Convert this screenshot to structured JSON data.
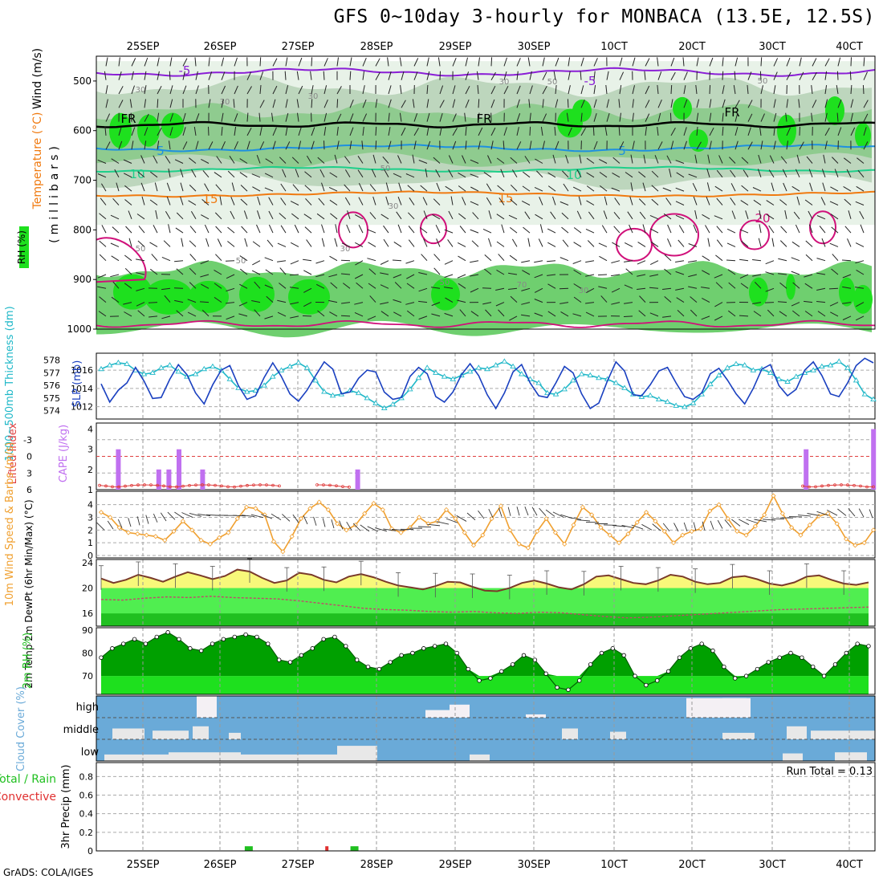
{
  "title": "GFS 0~10day 3-hourly for MONBACA (13.5E, 12.5S)",
  "credit": "GrADS: COLA/IGES",
  "date_labels": [
    "25SEP",
    "26SEP",
    "27SEP",
    "28SEP",
    "29SEP",
    "30SEP",
    "10CT",
    "20CT",
    "30CT",
    "40CT"
  ],
  "chart_data": [
    {
      "type": "heatmap",
      "ylabel": "(millibars)",
      "legend": [
        "RH (%)",
        "Temperature (°C)",
        "Wind (m/s)"
      ],
      "y_ticks": [
        500,
        600,
        700,
        800,
        900,
        1000
      ],
      "ylim": [
        1000,
        450
      ],
      "contour_labels": [
        "-5",
        "FR",
        "5",
        "10",
        "15",
        "20",
        "30",
        "50",
        "70"
      ],
      "colors": {
        "t_minus5": "#8a1fd6",
        "freezing": "#000000",
        "t5": "#1e90e0",
        "t10": "#1ecf8a",
        "t15": "#f07a10",
        "t20": "#d0107a",
        "rh70": "#6fcf6f",
        "rh90": "#1ee01e"
      }
    },
    {
      "type": "line",
      "ylabel_left": "1000~500mb Thickness (dm)",
      "ylabel_right": "SLP (mb)",
      "left_ticks": [
        574,
        575,
        576,
        577,
        578
      ],
      "right_ticks": [
        1012,
        1014,
        1016
      ],
      "series": [
        {
          "name": "Thickness",
          "color": "#20b8c8",
          "values": [
            577.3,
            577.6,
            577.8,
            577.7,
            577.2,
            576.9,
            577.0,
            577.4,
            577.6,
            577.1,
            576.7,
            576.9,
            577.3,
            577.5,
            577.2,
            576.5,
            575.8,
            575.5,
            575.6,
            576.0,
            576.7,
            577.2,
            577.5,
            577.8,
            577.4,
            576.4,
            575.5,
            575.2,
            575.3,
            575.6,
            575.4,
            575.0,
            574.6,
            574.2,
            574.5,
            575.0,
            575.7,
            576.6,
            577.4,
            577.0,
            576.7,
            576.5,
            576.8,
            577.1,
            577.4,
            577.3,
            577.6,
            577.9,
            577.5,
            576.9,
            576.5,
            576.2,
            575.4,
            575.3,
            575.7,
            576.4,
            576.9,
            576.8,
            576.6,
            576.5,
            576.2,
            575.8,
            575.3,
            575.1,
            575.2,
            574.9,
            574.7,
            574.4,
            574.3,
            574.6,
            575.3,
            576.1,
            576.8,
            577.4,
            577.7,
            577.6,
            577.2,
            577.3,
            577.0,
            576.5,
            576.3,
            576.7,
            577.0,
            577.2,
            577.5,
            577.6,
            577.9,
            577.4,
            576.4,
            575.3,
            574.9
          ]
        },
        {
          "name": "SLP",
          "color": "#1a40c0",
          "values": [
            1014.5,
            1012.5,
            1013.8,
            1014.6,
            1016.3,
            1014.8,
            1012.9,
            1013.0,
            1015.0,
            1016.6,
            1015.5,
            1013.5,
            1012.3,
            1014.4,
            1016.0,
            1016.5,
            1014.3,
            1012.8,
            1013.2,
            1015.2,
            1016.8,
            1015.3,
            1013.4,
            1012.6,
            1013.8,
            1015.4,
            1016.9,
            1016.1,
            1013.4,
            1013.6,
            1015.1,
            1016.0,
            1015.8,
            1013.6,
            1012.8,
            1013.0,
            1015.3,
            1016.3,
            1015.6,
            1013.1,
            1012.5,
            1013.6,
            1015.5,
            1016.7,
            1015.4,
            1013.3,
            1011.8,
            1013.5,
            1015.8,
            1016.6,
            1014.6,
            1013.2,
            1013.0,
            1014.6,
            1016.4,
            1015.7,
            1013.4,
            1011.8,
            1012.4,
            1014.8,
            1016.9,
            1015.9,
            1013.3,
            1013.2,
            1014.4,
            1015.9,
            1016.3,
            1014.6,
            1013.1,
            1012.8,
            1013.5,
            1015.6,
            1016.2,
            1014.9,
            1013.4,
            1012.3,
            1014.0,
            1016.1,
            1016.6,
            1014.3,
            1013.2,
            1013.9,
            1016.0,
            1016.9,
            1015.4,
            1013.4,
            1013.1,
            1014.6,
            1016.5,
            1017.3,
            1016.8
          ]
        }
      ]
    },
    {
      "type": "bar",
      "ylabel_left": "Lifted Index",
      "ylabel_right": "CAPE (J/kg)",
      "left_ticks": [
        -3,
        0,
        3,
        6
      ],
      "left_tick_labels": [
        "-3",
        "0",
        "3",
        "6"
      ],
      "right_ticks": [
        1,
        2,
        3,
        4
      ],
      "bar_color": "#c070f0",
      "line_color": "#e04040",
      "cape_bars": [
        {
          "i": 2,
          "v": 3
        },
        {
          "i": 14,
          "v": 2
        },
        {
          "i": 17,
          "v": 2
        },
        {
          "i": 20,
          "v": 3
        },
        {
          "i": 27,
          "v": 2
        },
        {
          "i": 73,
          "v": 2
        },
        {
          "i": 206,
          "v": 3
        },
        {
          "i": 226,
          "v": 4
        }
      ]
    },
    {
      "type": "line",
      "ylabel": "10m Wind Speed & Barbs (m/s)",
      "y_ticks": [
        0,
        1,
        2,
        3,
        4
      ],
      "color": "#f0a030",
      "values": [
        3.4,
        3.0,
        2.2,
        1.8,
        1.7,
        1.6,
        1.5,
        1.2,
        1.9,
        2.7,
        2.0,
        1.2,
        0.9,
        1.4,
        1.8,
        2.9,
        3.8,
        3.7,
        3.2,
        1.1,
        0.3,
        1.5,
        2.9,
        3.7,
        4.2,
        3.6,
        2.5,
        2.0,
        2.4,
        3.3,
        4.1,
        3.6,
        2.1,
        1.8,
        2.2,
        3.0,
        2.5,
        2.7,
        3.6,
        2.9,
        1.8,
        0.8,
        1.6,
        2.9,
        3.9,
        2.0,
        0.9,
        0.6,
        1.9,
        2.9,
        1.8,
        0.9,
        2.4,
        3.8,
        3.2,
        2.2,
        1.6,
        1.0,
        1.7,
        2.6,
        3.4,
        2.7,
        1.9,
        1.0,
        1.6,
        1.9,
        2.1,
        3.5,
        4.0,
        2.9,
        1.9,
        1.6,
        2.3,
        3.2,
        4.7,
        3.3,
        2.2,
        1.6,
        2.4,
        3.1,
        3.3,
        2.5,
        1.3,
        0.8,
        1.0,
        2.0
      ]
    },
    {
      "type": "area",
      "ylabel": "2m Temp 2m DewPt (6hr Min/Max) (°C)",
      "y_ticks": [
        16,
        20,
        24
      ],
      "colors": {
        "temp_fill": "#f8f87a",
        "dew_fill": "#50ee50",
        "base_fill": "#20c020",
        "temp_line": "#7a3a2a",
        "dew_line": "#c04a6a"
      },
      "temp": [
        21.5,
        20.8,
        21.3,
        22.1,
        21.6,
        21.0,
        21.8,
        22.5,
        22.0,
        21.4,
        21.9,
        22.9,
        22.6,
        21.6,
        20.8,
        21.2,
        22.4,
        22.1,
        21.3,
        20.9,
        21.8,
        22.2,
        21.7,
        21.0,
        20.4,
        20.1,
        19.8,
        20.3,
        21.0,
        20.9,
        20.2,
        19.6,
        19.5,
        20.0,
        20.8,
        21.2,
        20.7,
        20.1,
        19.8,
        20.6,
        21.8,
        22.0,
        21.4,
        20.8,
        20.6,
        21.2,
        22.1,
        21.8,
        21.0,
        20.6,
        20.8,
        21.7,
        21.9,
        21.4,
        20.7,
        20.4,
        20.9,
        21.8,
        22.0,
        21.3,
        20.7,
        20.5,
        20.9
      ],
      "dew": [
        18.2,
        18.1,
        18.4,
        18.6,
        18.5,
        18.7,
        18.5,
        18.4,
        18.3,
        18.0,
        17.6,
        17.2,
        16.8,
        16.6,
        16.5,
        16.3,
        16.2,
        16.3,
        16.1,
        16.0,
        16.2,
        16.1,
        15.8,
        15.5,
        15.3,
        15.4,
        15.6,
        15.8,
        16.0,
        16.2,
        16.4,
        16.6,
        16.7,
        16.8,
        16.9,
        17.0
      ]
    },
    {
      "type": "area",
      "ylabel": "2m RH (%)",
      "y_ticks": [
        70,
        80,
        90
      ],
      "colors": {
        "fill_light": "#1ee01e",
        "fill_dark": "#00a000"
      },
      "values": [
        78,
        82,
        84,
        86,
        84,
        87,
        89,
        86,
        82,
        81,
        84,
        86,
        87,
        88,
        87,
        84,
        77,
        76,
        79,
        82,
        86,
        87,
        83,
        77,
        74,
        73,
        76,
        79,
        80,
        82,
        83,
        84,
        80,
        73,
        68,
        69,
        72,
        75,
        79,
        77,
        71,
        65,
        64,
        68,
        75,
        80,
        82,
        79,
        70,
        66,
        68,
        72,
        78,
        82,
        84,
        81,
        74,
        69,
        70,
        73,
        76,
        78,
        80,
        78,
        74,
        70,
        75,
        80,
        84,
        83
      ]
    },
    {
      "type": "heatmap",
      "ylabel": "Cloud Cover (%)",
      "categories": [
        "high",
        "middle",
        "low"
      ],
      "colors": {
        "background": "#6aaad8",
        "cloud": "#e8e8e8",
        "high_cloud": "#f4f0f4"
      }
    },
    {
      "type": "bar",
      "ylabel": "3hr Precip (mm)",
      "legend": [
        "Total / Rain",
        "Convective"
      ],
      "y_ticks": [
        0,
        0.2,
        0.4,
        0.6,
        0.8
      ],
      "annotation": "Run Total = 0.13",
      "colors": {
        "total": "#20c020",
        "convective": "#e03030"
      },
      "bars": [
        {
          "day": 1.87,
          "v": 0.05,
          "kind": "total"
        },
        {
          "day": 2.9,
          "v": 0.05,
          "kind": "convective"
        },
        {
          "day": 3.22,
          "v": 0.05,
          "kind": "total"
        }
      ]
    }
  ]
}
